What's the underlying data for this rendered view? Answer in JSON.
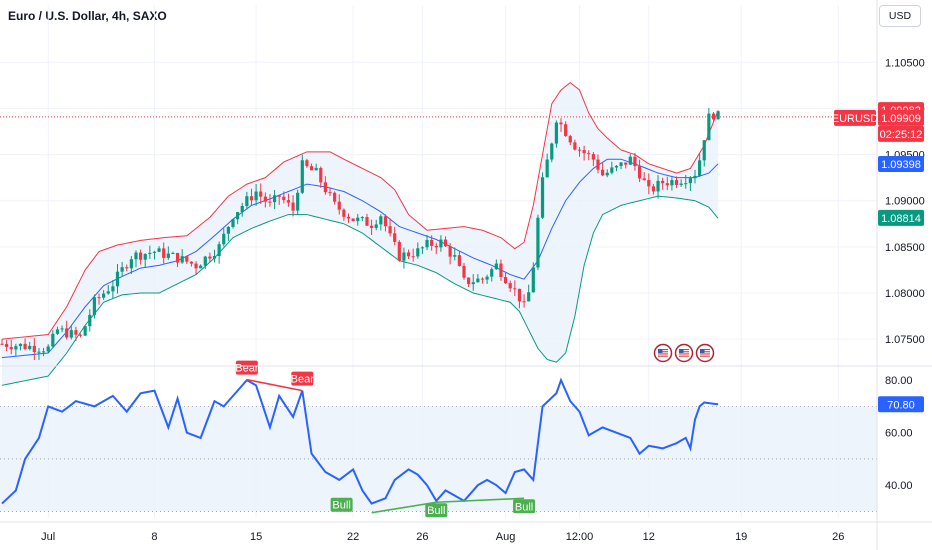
{
  "header": {
    "title": "Euro / U.S. Dollar, 4h, SAXO",
    "currency_button": "USD"
  },
  "colors": {
    "up": "#089981",
    "down": "#f23645",
    "basis": "#2962ff",
    "upper": "#f23645",
    "lower": "#089981",
    "band_fill": "#e8f1fb",
    "rsi_line": "#2962ff",
    "bear": "#f23645",
    "bull": "#4caf50"
  },
  "chart_data": [
    {
      "type": "candlestick",
      "title": "Euro / U.S. Dollar, 4h, SAXO",
      "ylim": [
        1.0722,
        1.1085
      ],
      "price_ticks": [
        "1.10500",
        "1.10000",
        "1.09500",
        "1.09000",
        "1.08500",
        "1.08000",
        "1.07500"
      ],
      "price_tick_values": [
        1.105,
        1.1,
        1.095,
        1.09,
        1.085,
        1.08,
        1.075
      ],
      "date_ticks": [
        "Jul",
        "8",
        "15",
        "22",
        "26",
        "Aug",
        "12:00",
        "12",
        "19",
        "26"
      ],
      "date_tick_index": [
        10,
        33,
        55,
        76,
        91,
        109,
        125,
        140,
        160,
        181
      ],
      "current_symbol": "EURUSD",
      "current_price": "1.09909",
      "countdown": "02:25:12",
      "upper_band_label": "1.09982",
      "basis_label": "1.09398",
      "lower_band_label": "1.08814",
      "upper_band_value": 1.09982,
      "basis_value": 1.09398,
      "lower_band_value": 1.08814,
      "events_icons": [
        "us-flag-icon",
        "us-flag-icon",
        "us-flag-icon"
      ],
      "close_anchors": [
        [
          0,
          1.0745
        ],
        [
          10,
          1.074
        ],
        [
          12,
          1.076
        ],
        [
          17,
          1.0752
        ],
        [
          20,
          1.079
        ],
        [
          24,
          1.081
        ],
        [
          28,
          1.084
        ],
        [
          33,
          1.0845
        ],
        [
          38,
          1.0838
        ],
        [
          42,
          1.083
        ],
        [
          47,
          1.085
        ],
        [
          50,
          1.0885
        ],
        [
          55,
          1.091
        ],
        [
          58,
          1.0895
        ],
        [
          60,
          1.0905
        ],
        [
          63,
          1.089
        ],
        [
          65,
          1.0938
        ],
        [
          68,
          1.093
        ],
        [
          72,
          1.0895
        ],
        [
          76,
          1.088
        ],
        [
          80,
          1.0875
        ],
        [
          82,
          1.0885
        ],
        [
          84,
          1.086
        ],
        [
          86,
          1.084
        ],
        [
          90,
          1.0845
        ],
        [
          92,
          1.0852
        ],
        [
          95,
          1.0855
        ],
        [
          98,
          1.0838
        ],
        [
          100,
          1.0812
        ],
        [
          104,
          1.0815
        ],
        [
          107,
          1.083
        ],
        [
          110,
          1.081
        ],
        [
          112,
          1.0795
        ],
        [
          113,
          1.0785
        ],
        [
          114,
          1.08
        ],
        [
          115,
          1.083
        ],
        [
          116,
          1.088
        ],
        [
          117,
          1.092
        ],
        [
          119,
          1.0965
        ],
        [
          120,
          1.099
        ],
        [
          122,
          1.0975
        ],
        [
          124,
          1.096
        ],
        [
          126,
          1.0952
        ],
        [
          128,
          1.0945
        ],
        [
          130,
          1.0928
        ],
        [
          133,
          1.0935
        ],
        [
          136,
          1.0945
        ],
        [
          138,
          1.093
        ],
        [
          140,
          1.091
        ],
        [
          143,
          1.092
        ],
        [
          146,
          1.0922
        ],
        [
          148,
          1.0925
        ],
        [
          150,
          1.093
        ],
        [
          151,
          1.0945
        ],
        [
          152,
          1.097
        ],
        [
          153,
          1.099
        ],
        [
          154,
          1.0994
        ],
        [
          155,
          1.0991
        ]
      ],
      "upper_band": [
        [
          0,
          1.075
        ],
        [
          10,
          1.0755
        ],
        [
          14,
          1.0785
        ],
        [
          18,
          1.0825
        ],
        [
          21,
          1.0845
        ],
        [
          25,
          1.0852
        ],
        [
          30,
          1.0857
        ],
        [
          35,
          1.086
        ],
        [
          40,
          1.0862
        ],
        [
          45,
          1.0882
        ],
        [
          49,
          1.0905
        ],
        [
          53,
          1.0918
        ],
        [
          57,
          1.0925
        ],
        [
          61,
          1.0942
        ],
        [
          66,
          1.0953
        ],
        [
          71,
          1.0953
        ],
        [
          74,
          1.0945
        ],
        [
          78,
          1.0935
        ],
        [
          82,
          1.0925
        ],
        [
          85,
          1.0912
        ],
        [
          88,
          1.0885
        ],
        [
          92,
          1.0868
        ],
        [
          96,
          1.087
        ],
        [
          100,
          1.0872
        ],
        [
          104,
          1.0868
        ],
        [
          108,
          1.086
        ],
        [
          111,
          1.0848
        ],
        [
          113,
          1.0855
        ],
        [
          115,
          1.0895
        ],
        [
          117,
          1.095
        ],
        [
          119,
          1.1005
        ],
        [
          121,
          1.102
        ],
        [
          123,
          1.1028
        ],
        [
          125,
          1.102
        ],
        [
          127,
          1.0995
        ],
        [
          129,
          1.0978
        ],
        [
          131,
          1.0968
        ],
        [
          134,
          1.0955
        ],
        [
          137,
          1.095
        ],
        [
          140,
          1.094
        ],
        [
          143,
          1.0935
        ],
        [
          146,
          1.093
        ],
        [
          149,
          1.0935
        ],
        [
          152,
          1.096
        ],
        [
          155,
          1.0998
        ]
      ],
      "basis": [
        [
          0,
          1.073
        ],
        [
          10,
          1.0735
        ],
        [
          14,
          1.0758
        ],
        [
          18,
          1.0785
        ],
        [
          22,
          1.0808
        ],
        [
          26,
          1.0818
        ],
        [
          30,
          1.0827
        ],
        [
          34,
          1.083
        ],
        [
          38,
          1.0835
        ],
        [
          42,
          1.0845
        ],
        [
          46,
          1.0862
        ],
        [
          50,
          1.088
        ],
        [
          54,
          1.0895
        ],
        [
          58,
          1.0902
        ],
        [
          62,
          1.091
        ],
        [
          66,
          1.0918
        ],
        [
          70,
          1.0915
        ],
        [
          74,
          1.091
        ],
        [
          78,
          1.09
        ],
        [
          82,
          1.0888
        ],
        [
          86,
          1.0872
        ],
        [
          90,
          1.0865
        ],
        [
          94,
          1.0858
        ],
        [
          98,
          1.0848
        ],
        [
          102,
          1.0838
        ],
        [
          106,
          1.083
        ],
        [
          110,
          1.082
        ],
        [
          113,
          1.0815
        ],
        [
          116,
          1.0835
        ],
        [
          119,
          1.087
        ],
        [
          122,
          1.09
        ],
        [
          125,
          1.092
        ],
        [
          128,
          1.0935
        ],
        [
          131,
          1.0945
        ],
        [
          134,
          1.0945
        ],
        [
          138,
          1.0938
        ],
        [
          142,
          1.093
        ],
        [
          146,
          1.0925
        ],
        [
          150,
          1.0925
        ],
        [
          153,
          1.093
        ],
        [
          155,
          1.094
        ]
      ],
      "lower_band": [
        [
          0,
          1.07
        ],
        [
          10,
          1.071
        ],
        [
          14,
          1.0735
        ],
        [
          18,
          1.0765
        ],
        [
          22,
          1.079
        ],
        [
          26,
          1.0798
        ],
        [
          30,
          1.08
        ],
        [
          34,
          1.08
        ],
        [
          38,
          1.081
        ],
        [
          42,
          1.082
        ],
        [
          46,
          1.0838
        ],
        [
          50,
          1.086
        ],
        [
          54,
          1.087
        ],
        [
          58,
          1.0878
        ],
        [
          62,
          1.0885
        ],
        [
          66,
          1.0885
        ],
        [
          70,
          1.088
        ],
        [
          74,
          1.0875
        ],
        [
          78,
          1.0865
        ],
        [
          82,
          1.085
        ],
        [
          86,
          1.0835
        ],
        [
          90,
          1.083
        ],
        [
          94,
          1.0822
        ],
        [
          98,
          1.081
        ],
        [
          102,
          1.08
        ],
        [
          106,
          1.0795
        ],
        [
          110,
          1.079
        ],
        [
          112,
          1.078
        ],
        [
          114,
          1.076
        ],
        [
          116,
          1.074
        ],
        [
          118,
          1.0728
        ],
        [
          120,
          1.0725
        ],
        [
          122,
          1.0735
        ],
        [
          124,
          1.0775
        ],
        [
          126,
          1.083
        ],
        [
          128,
          1.0865
        ],
        [
          130,
          1.0885
        ],
        [
          134,
          1.0895
        ],
        [
          138,
          1.09
        ],
        [
          142,
          1.0905
        ],
        [
          146,
          1.0903
        ],
        [
          150,
          1.09
        ],
        [
          153,
          1.0893
        ],
        [
          155,
          1.0881
        ]
      ]
    },
    {
      "type": "line",
      "title": "RSI",
      "ylim": [
        27.5,
        85
      ],
      "ticks": [
        "80.00",
        "60.00",
        "40.00"
      ],
      "tick_values": [
        80,
        60,
        40
      ],
      "level_lines": [
        70,
        50,
        30
      ],
      "current_value_label": "70.80",
      "current_value": 70.8,
      "anchors": [
        [
          0,
          33
        ],
        [
          3,
          38
        ],
        [
          5,
          50
        ],
        [
          8,
          58
        ],
        [
          10,
          70
        ],
        [
          13,
          68
        ],
        [
          16,
          72
        ],
        [
          20,
          70
        ],
        [
          24,
          74
        ],
        [
          27,
          68
        ],
        [
          30,
          75
        ],
        [
          33,
          76
        ],
        [
          36,
          62
        ],
        [
          38,
          73
        ],
        [
          40,
          60
        ],
        [
          43,
          58
        ],
        [
          46,
          72
        ],
        [
          48,
          70
        ],
        [
          51,
          76
        ],
        [
          53,
          80
        ],
        [
          55,
          78
        ],
        [
          58,
          62
        ],
        [
          60,
          74
        ],
        [
          63,
          66
        ],
        [
          65,
          76
        ],
        [
          67,
          52
        ],
        [
          70,
          45
        ],
        [
          73,
          42
        ],
        [
          76,
          46
        ],
        [
          78,
          38
        ],
        [
          80,
          33
        ],
        [
          83,
          35
        ],
        [
          85,
          42
        ],
        [
          88,
          46
        ],
        [
          90,
          44
        ],
        [
          92,
          40
        ],
        [
          94,
          34
        ],
        [
          96,
          38
        ],
        [
          100,
          34
        ],
        [
          103,
          40
        ],
        [
          105,
          42
        ],
        [
          107,
          40
        ],
        [
          109,
          37
        ],
        [
          111,
          45
        ],
        [
          113,
          46
        ],
        [
          115,
          42
        ],
        [
          117,
          70
        ],
        [
          120,
          75
        ],
        [
          121,
          80
        ],
        [
          123,
          72
        ],
        [
          125,
          68
        ],
        [
          127,
          59
        ],
        [
          130,
          62
        ],
        [
          133,
          60
        ],
        [
          136,
          58
        ],
        [
          138,
          52
        ],
        [
          140,
          55
        ],
        [
          143,
          54
        ],
        [
          146,
          56
        ],
        [
          148,
          58
        ],
        [
          149,
          54
        ],
        [
          150,
          65
        ],
        [
          151,
          70
        ],
        [
          152,
          71.5
        ],
        [
          154,
          71
        ],
        [
          155,
          70.8
        ]
      ],
      "divergences": [
        {
          "label": "Bear",
          "kind": "bear",
          "from_x": 53,
          "from_y": 80.2,
          "to_x": 65,
          "to_y": 76
        },
        {
          "label": "Bull",
          "kind": "bull",
          "from_x": 80,
          "from_y": 29.5,
          "to_x": 94,
          "to_y": 33.5
        },
        {
          "label": "Bull",
          "kind": "bull",
          "from_x": 94,
          "from_y": 33.5,
          "to_x": 113,
          "to_y": 35
        }
      ]
    }
  ]
}
